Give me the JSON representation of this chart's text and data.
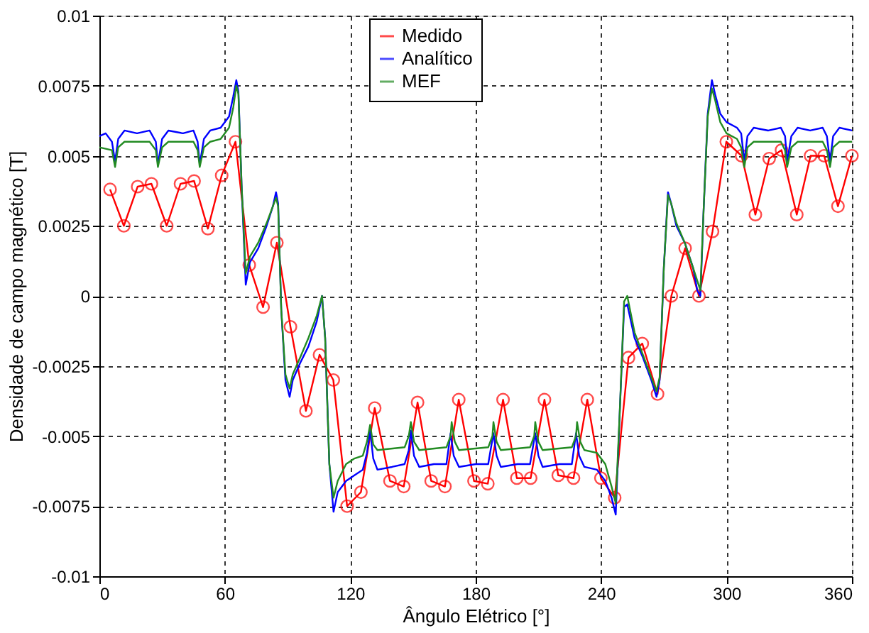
{
  "chart_data": {
    "type": "line",
    "xlabel": "Ângulo Elétrico [°]",
    "ylabel": "Densidade de campo magnético [T]",
    "xlim": [
      0,
      360
    ],
    "xticks": [
      0,
      60,
      120,
      180,
      240,
      300,
      360
    ],
    "ylim": [
      -0.01,
      0.01
    ],
    "yticks": [
      -0.01,
      -0.0075,
      -0.005,
      -0.0025,
      0,
      0.0025,
      0.005,
      0.0075,
      0.01
    ],
    "grid": true,
    "legend": "top",
    "line_style": "solid",
    "series": [
      {
        "name": "Medido",
        "color": "#ff0000",
        "marker": "circle",
        "x": [
          5.1,
          11.7,
          18.3,
          24.9,
          32.2,
          38.8,
          45.3,
          51.9,
          58.5,
          65.1,
          71.7,
          78.3,
          84.9,
          91.4,
          98.8,
          105.3,
          111.9,
          118.5,
          125.1,
          131.7,
          139.0,
          145.6,
          152.2,
          158.7,
          165.3,
          171.9,
          179.2,
          185.8,
          193.1,
          199.7,
          206.3,
          212.9,
          219.5,
          226.8,
          233.4,
          239.9,
          246.5,
          253.1,
          259.7,
          267.0,
          273.6,
          280.2,
          286.8,
          293.3,
          299.9,
          307.2,
          313.8,
          320.4,
          326.3,
          333.6,
          340.2,
          346.7,
          353.3,
          360
        ],
        "values": [
          0.0038,
          0.0025,
          0.0039,
          0.004,
          0.0025,
          0.004,
          0.0041,
          0.0024,
          0.0043,
          0.0055,
          0.0011,
          -0.0004,
          0.0019,
          -0.0011,
          -0.0041,
          -0.0021,
          -0.003,
          -0.0075,
          -0.007,
          -0.004,
          -0.0066,
          -0.0068,
          -0.0038,
          -0.0066,
          -0.0068,
          -0.0037,
          -0.0066,
          -0.0067,
          -0.0037,
          -0.0065,
          -0.0065,
          -0.0037,
          -0.0064,
          -0.0065,
          -0.0037,
          -0.0065,
          -0.0072,
          -0.0022,
          -0.0017,
          -0.0035,
          0.0,
          0.0017,
          0.0,
          0.0023,
          0.0055,
          0.005,
          0.0029,
          0.0049,
          0.0052,
          0.0029,
          0.005,
          0.005,
          0.0032,
          0.005
        ]
      },
      {
        "name": "Analítico",
        "color": "#0000ff",
        "marker": "none",
        "x": [
          0,
          3,
          6,
          7.5,
          9,
          12,
          18,
          24,
          27,
          28,
          30,
          33,
          40,
          45,
          47,
          48,
          50,
          53,
          58,
          62,
          64,
          65.5,
          66.5,
          68,
          70,
          72,
          76,
          80,
          83,
          84.5,
          85.5,
          87,
          89,
          91,
          92.5,
          96,
          100,
          104,
          106.5,
          108,
          110,
          112,
          114,
          118,
          122,
          126,
          128,
          129.5,
          131,
          133,
          140,
          146,
          148,
          149,
          150.5,
          153,
          160,
          166,
          168,
          169.5,
          172,
          180,
          186,
          188.5,
          190,
          192,
          200,
          206,
          208.5,
          210,
          212,
          220,
          226,
          228,
          229.5,
          232,
          238,
          242,
          245,
          247,
          249,
          251,
          252.5,
          256,
          260,
          264,
          266.5,
          268,
          270,
          272,
          273.5,
          276,
          280,
          284,
          286,
          287.5,
          289,
          291,
          293,
          294.5,
          297,
          300,
          305,
          307,
          308.5,
          310,
          313,
          320,
          326,
          328,
          329,
          331,
          334,
          340,
          346,
          348,
          349.5,
          351,
          354,
          360
        ],
        "values": [
          0.0057,
          0.0058,
          0.0055,
          0.0048,
          0.0056,
          0.0059,
          0.0058,
          0.0059,
          0.0055,
          0.0047,
          0.0056,
          0.0059,
          0.0058,
          0.0059,
          0.0055,
          0.0047,
          0.0056,
          0.0059,
          0.006,
          0.0064,
          0.0071,
          0.0077,
          0.0073,
          0.004,
          0.0004,
          0.0012,
          0.0017,
          0.0025,
          0.0032,
          0.0037,
          0.0033,
          -0.0005,
          -0.003,
          -0.0036,
          -0.003,
          -0.0024,
          -0.0018,
          -0.0009,
          0.0,
          -0.0015,
          -0.006,
          -0.0077,
          -0.007,
          -0.0066,
          -0.0064,
          -0.0062,
          -0.0056,
          -0.0048,
          -0.0058,
          -0.0062,
          -0.0061,
          -0.006,
          -0.0055,
          -0.0048,
          -0.0057,
          -0.0061,
          -0.006,
          -0.006,
          -0.0049,
          -0.0057,
          -0.0061,
          -0.006,
          -0.006,
          -0.0049,
          -0.0057,
          -0.0061,
          -0.006,
          -0.006,
          -0.0049,
          -0.0057,
          -0.0061,
          -0.006,
          -0.006,
          -0.0049,
          -0.0057,
          -0.0061,
          -0.0062,
          -0.0066,
          -0.0072,
          -0.0078,
          -0.004,
          -0.0004,
          -0.0003,
          -0.0015,
          -0.0022,
          -0.003,
          -0.0036,
          -0.003,
          0.001,
          0.0037,
          0.0033,
          0.0025,
          0.0019,
          0.001,
          0.0002,
          0.0,
          0.003,
          0.0065,
          0.0077,
          0.0072,
          0.0065,
          0.0062,
          0.006,
          0.0058,
          0.0048,
          0.0057,
          0.006,
          0.0059,
          0.006,
          0.0057,
          0.0048,
          0.0057,
          0.006,
          0.0059,
          0.006,
          0.0057,
          0.0048,
          0.0057,
          0.006,
          0.0059
        ]
      },
      {
        "name": "MEF",
        "color": "#228b22",
        "marker": "none",
        "x": [
          0,
          6,
          7.5,
          9,
          12,
          24,
          27,
          28,
          30,
          33,
          45,
          47,
          48,
          50,
          53,
          58,
          62,
          64,
          65.5,
          66.5,
          68,
          70,
          72,
          76,
          80,
          84.5,
          85.5,
          87,
          89,
          91,
          92.5,
          96,
          100,
          104,
          106.5,
          108,
          110,
          112,
          114,
          118,
          122,
          126,
          128,
          129.5,
          131,
          133,
          146,
          148,
          149,
          150.5,
          153,
          166,
          168,
          168.5,
          170,
          172,
          186,
          188,
          188.5,
          190,
          192,
          206,
          208,
          208.5,
          210,
          212,
          226,
          228,
          228.5,
          230,
          232,
          238,
          242,
          245,
          247,
          249,
          251,
          252.5,
          256,
          260,
          264,
          266.5,
          268,
          270,
          272,
          273.5,
          276,
          280,
          284,
          287.5,
          289,
          291,
          293,
          294.5,
          297,
          300,
          305,
          307,
          308.5,
          310,
          313,
          326,
          328,
          329,
          331,
          334,
          346,
          348,
          349.5,
          351,
          354,
          360
        ],
        "values": [
          0.0053,
          0.0052,
          0.0046,
          0.0053,
          0.0055,
          0.0055,
          0.0052,
          0.0046,
          0.0053,
          0.0055,
          0.0055,
          0.0052,
          0.0046,
          0.0053,
          0.0055,
          0.0056,
          0.006,
          0.0067,
          0.0075,
          0.0072,
          0.004,
          0.0008,
          0.0014,
          0.0019,
          0.0026,
          0.0035,
          0.0032,
          -0.0005,
          -0.0028,
          -0.0033,
          -0.0028,
          -0.0022,
          -0.0015,
          -0.0007,
          0.0,
          -0.0015,
          -0.006,
          -0.0072,
          -0.0066,
          -0.006,
          -0.0058,
          -0.0057,
          -0.0052,
          -0.0046,
          -0.0053,
          -0.0055,
          -0.0054,
          -0.005,
          -0.0045,
          -0.0052,
          -0.0055,
          -0.0054,
          -0.005,
          -0.0045,
          -0.0052,
          -0.0055,
          -0.0054,
          -0.005,
          -0.0045,
          -0.0052,
          -0.0055,
          -0.0054,
          -0.005,
          -0.0045,
          -0.0052,
          -0.0055,
          -0.0054,
          -0.005,
          -0.0045,
          -0.0052,
          -0.0055,
          -0.0056,
          -0.006,
          -0.0068,
          -0.0074,
          -0.004,
          -0.0002,
          0.0,
          -0.0013,
          -0.0021,
          -0.0029,
          -0.0034,
          -0.0029,
          0.001,
          0.0036,
          0.0033,
          0.0026,
          0.0019,
          0.001,
          0.0002,
          0.003,
          0.0064,
          0.0074,
          0.007,
          0.0062,
          0.0058,
          0.0056,
          0.0053,
          0.0046,
          0.0053,
          0.0055,
          0.0055,
          0.0052,
          0.0046,
          0.0053,
          0.0055,
          0.0055,
          0.0052,
          0.0046,
          0.0053,
          0.0055,
          0.0055
        ]
      }
    ]
  }
}
